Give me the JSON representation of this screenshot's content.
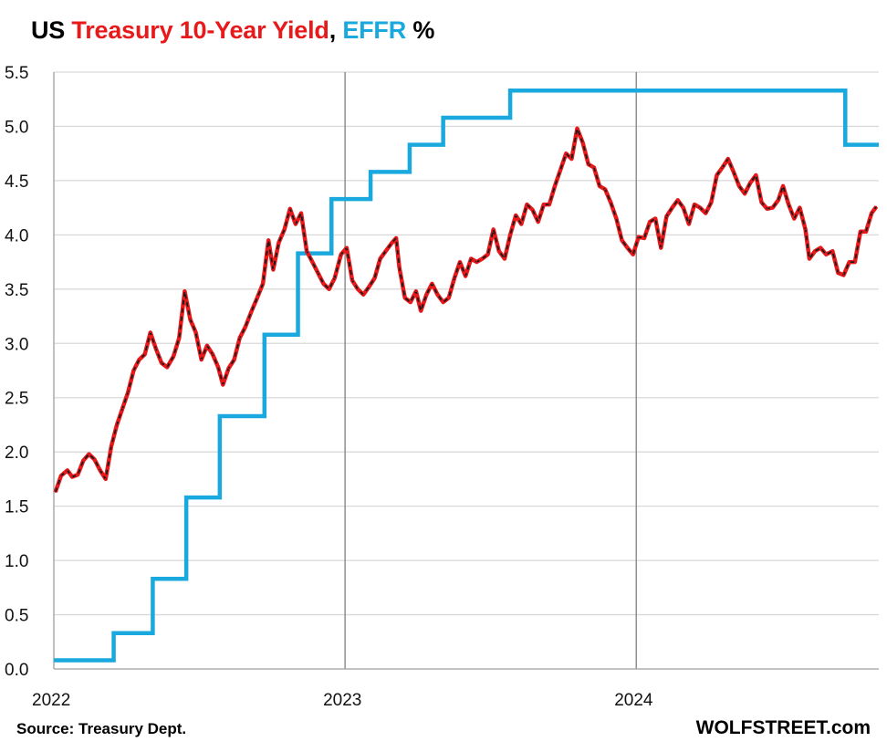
{
  "title": {
    "part1": "US ",
    "part2": "Treasury 10-Year Yield",
    "part3": ", ",
    "part4": "EFFR",
    "part5": " %"
  },
  "colors": {
    "treasury": "#e8191b",
    "treasury_dash": "#1a1a1a",
    "effr": "#19a9de",
    "grid": "#d9d9d9",
    "year_line": "#7f7f7f",
    "axis": "#9e9e9e"
  },
  "source": "Source: Treasury Dept.",
  "brand": "WOLFSTREET.com",
  "chart_data": {
    "type": "line",
    "title": "US Treasury 10-Year Yield, EFFR %",
    "xlabel": "",
    "ylabel": "",
    "x_range": [
      "2022-01-01",
      "2024-10-31"
    ],
    "ylim": [
      0,
      5.5
    ],
    "y_ticks": [
      "0.0",
      "0.5",
      "1.0",
      "1.5",
      "2.0",
      "2.5",
      "3.0",
      "3.5",
      "4.0",
      "4.5",
      "5.0",
      "5.5"
    ],
    "x_ticks": [
      {
        "label": "2022",
        "date": "2022-01-01"
      },
      {
        "label": "2023",
        "date": "2023-01-01"
      },
      {
        "label": "2024",
        "date": "2024-01-01"
      }
    ],
    "grid": true,
    "vertical_year_lines": [
      "2023-01-01",
      "2024-01-01"
    ],
    "series": [
      {
        "name": "Treasury 10-Year Yield",
        "style": "red solid line with black dashed overlay",
        "points": [
          [
            "2022-01-03",
            1.63
          ],
          [
            "2022-01-10",
            1.78
          ],
          [
            "2022-01-18",
            1.83
          ],
          [
            "2022-01-24",
            1.77
          ],
          [
            "2022-01-31",
            1.79
          ],
          [
            "2022-02-07",
            1.92
          ],
          [
            "2022-02-14",
            1.98
          ],
          [
            "2022-02-21",
            1.93
          ],
          [
            "2022-02-28",
            1.83
          ],
          [
            "2022-03-07",
            1.75
          ],
          [
            "2022-03-14",
            2.05
          ],
          [
            "2022-03-21",
            2.25
          ],
          [
            "2022-03-28",
            2.4
          ],
          [
            "2022-04-04",
            2.55
          ],
          [
            "2022-04-11",
            2.75
          ],
          [
            "2022-04-18",
            2.85
          ],
          [
            "2022-04-25",
            2.9
          ],
          [
            "2022-05-02",
            3.1
          ],
          [
            "2022-05-09",
            2.95
          ],
          [
            "2022-05-16",
            2.82
          ],
          [
            "2022-05-23",
            2.78
          ],
          [
            "2022-05-31",
            2.88
          ],
          [
            "2022-06-07",
            3.05
          ],
          [
            "2022-06-14",
            3.48
          ],
          [
            "2022-06-21",
            3.22
          ],
          [
            "2022-06-28",
            3.1
          ],
          [
            "2022-07-05",
            2.85
          ],
          [
            "2022-07-12",
            2.98
          ],
          [
            "2022-07-19",
            2.9
          ],
          [
            "2022-07-26",
            2.78
          ],
          [
            "2022-08-01",
            2.62
          ],
          [
            "2022-08-08",
            2.77
          ],
          [
            "2022-08-15",
            2.85
          ],
          [
            "2022-08-22",
            3.05
          ],
          [
            "2022-08-29",
            3.15
          ],
          [
            "2022-09-06",
            3.3
          ],
          [
            "2022-09-13",
            3.42
          ],
          [
            "2022-09-20",
            3.55
          ],
          [
            "2022-09-27",
            3.95
          ],
          [
            "2022-10-03",
            3.68
          ],
          [
            "2022-10-10",
            3.93
          ],
          [
            "2022-10-17",
            4.05
          ],
          [
            "2022-10-24",
            4.24
          ],
          [
            "2022-10-31",
            4.1
          ],
          [
            "2022-11-07",
            4.2
          ],
          [
            "2022-11-14",
            3.85
          ],
          [
            "2022-11-21",
            3.75
          ],
          [
            "2022-11-28",
            3.65
          ],
          [
            "2022-12-05",
            3.55
          ],
          [
            "2022-12-12",
            3.5
          ],
          [
            "2022-12-19",
            3.6
          ],
          [
            "2022-12-27",
            3.82
          ],
          [
            "2023-01-03",
            3.88
          ],
          [
            "2023-01-10",
            3.58
          ],
          [
            "2023-01-17",
            3.5
          ],
          [
            "2023-01-24",
            3.45
          ],
          [
            "2023-01-31",
            3.52
          ],
          [
            "2023-02-07",
            3.6
          ],
          [
            "2023-02-14",
            3.78
          ],
          [
            "2023-02-21",
            3.85
          ],
          [
            "2023-02-28",
            3.92
          ],
          [
            "2023-03-06",
            3.97
          ],
          [
            "2023-03-10",
            3.7
          ],
          [
            "2023-03-17",
            3.42
          ],
          [
            "2023-03-24",
            3.38
          ],
          [
            "2023-03-31",
            3.48
          ],
          [
            "2023-04-06",
            3.3
          ],
          [
            "2023-04-13",
            3.45
          ],
          [
            "2023-04-20",
            3.55
          ],
          [
            "2023-04-27",
            3.45
          ],
          [
            "2023-05-04",
            3.38
          ],
          [
            "2023-05-11",
            3.42
          ],
          [
            "2023-05-18",
            3.6
          ],
          [
            "2023-05-25",
            3.75
          ],
          [
            "2023-06-01",
            3.62
          ],
          [
            "2023-06-08",
            3.78
          ],
          [
            "2023-06-15",
            3.75
          ],
          [
            "2023-06-22",
            3.78
          ],
          [
            "2023-06-29",
            3.82
          ],
          [
            "2023-07-06",
            4.05
          ],
          [
            "2023-07-13",
            3.85
          ],
          [
            "2023-07-20",
            3.78
          ],
          [
            "2023-07-27",
            4.0
          ],
          [
            "2023-08-03",
            4.18
          ],
          [
            "2023-08-10",
            4.1
          ],
          [
            "2023-08-17",
            4.28
          ],
          [
            "2023-08-24",
            4.23
          ],
          [
            "2023-08-31",
            4.12
          ],
          [
            "2023-09-07",
            4.28
          ],
          [
            "2023-09-14",
            4.28
          ],
          [
            "2023-09-21",
            4.45
          ],
          [
            "2023-09-28",
            4.6
          ],
          [
            "2023-10-05",
            4.75
          ],
          [
            "2023-10-12",
            4.7
          ],
          [
            "2023-10-19",
            4.98
          ],
          [
            "2023-10-26",
            4.85
          ],
          [
            "2023-11-02",
            4.65
          ],
          [
            "2023-11-09",
            4.62
          ],
          [
            "2023-11-16",
            4.45
          ],
          [
            "2023-11-23",
            4.42
          ],
          [
            "2023-11-30",
            4.3
          ],
          [
            "2023-12-07",
            4.15
          ],
          [
            "2023-12-14",
            3.95
          ],
          [
            "2023-12-21",
            3.88
          ],
          [
            "2023-12-28",
            3.82
          ],
          [
            "2024-01-04",
            3.98
          ],
          [
            "2024-01-11",
            3.97
          ],
          [
            "2024-01-18",
            4.12
          ],
          [
            "2024-01-25",
            4.15
          ],
          [
            "2024-02-01",
            3.88
          ],
          [
            "2024-02-08",
            4.17
          ],
          [
            "2024-02-15",
            4.25
          ],
          [
            "2024-02-22",
            4.32
          ],
          [
            "2024-02-29",
            4.25
          ],
          [
            "2024-03-07",
            4.1
          ],
          [
            "2024-03-14",
            4.28
          ],
          [
            "2024-03-21",
            4.25
          ],
          [
            "2024-03-28",
            4.2
          ],
          [
            "2024-04-04",
            4.3
          ],
          [
            "2024-04-11",
            4.55
          ],
          [
            "2024-04-18",
            4.62
          ],
          [
            "2024-04-25",
            4.7
          ],
          [
            "2024-05-02",
            4.58
          ],
          [
            "2024-05-09",
            4.45
          ],
          [
            "2024-05-16",
            4.38
          ],
          [
            "2024-05-23",
            4.48
          ],
          [
            "2024-05-30",
            4.55
          ],
          [
            "2024-06-06",
            4.3
          ],
          [
            "2024-06-13",
            4.24
          ],
          [
            "2024-06-20",
            4.25
          ],
          [
            "2024-06-27",
            4.32
          ],
          [
            "2024-07-03",
            4.45
          ],
          [
            "2024-07-10",
            4.28
          ],
          [
            "2024-07-17",
            4.15
          ],
          [
            "2024-07-24",
            4.25
          ],
          [
            "2024-07-31",
            4.05
          ],
          [
            "2024-08-05",
            3.78
          ],
          [
            "2024-08-12",
            3.85
          ],
          [
            "2024-08-19",
            3.88
          ],
          [
            "2024-08-26",
            3.82
          ],
          [
            "2024-09-03",
            3.85
          ],
          [
            "2024-09-10",
            3.65
          ],
          [
            "2024-09-17",
            3.63
          ],
          [
            "2024-09-24",
            3.75
          ],
          [
            "2024-10-01",
            3.75
          ],
          [
            "2024-10-08",
            4.03
          ],
          [
            "2024-10-15",
            4.03
          ],
          [
            "2024-10-22",
            4.2
          ],
          [
            "2024-10-28",
            4.26
          ]
        ]
      },
      {
        "name": "EFFR",
        "style": "blue step line",
        "points": [
          [
            "2022-01-01",
            0.08
          ],
          [
            "2022-03-17",
            0.33
          ],
          [
            "2022-05-05",
            0.83
          ],
          [
            "2022-06-16",
            1.58
          ],
          [
            "2022-07-28",
            2.33
          ],
          [
            "2022-09-22",
            3.08
          ],
          [
            "2022-11-03",
            3.83
          ],
          [
            "2022-12-15",
            4.33
          ],
          [
            "2023-02-02",
            4.58
          ],
          [
            "2023-03-23",
            4.83
          ],
          [
            "2023-05-04",
            5.08
          ],
          [
            "2023-07-27",
            5.33
          ],
          [
            "2024-09-19",
            4.83
          ],
          [
            "2024-10-31",
            4.83
          ]
        ]
      }
    ]
  }
}
